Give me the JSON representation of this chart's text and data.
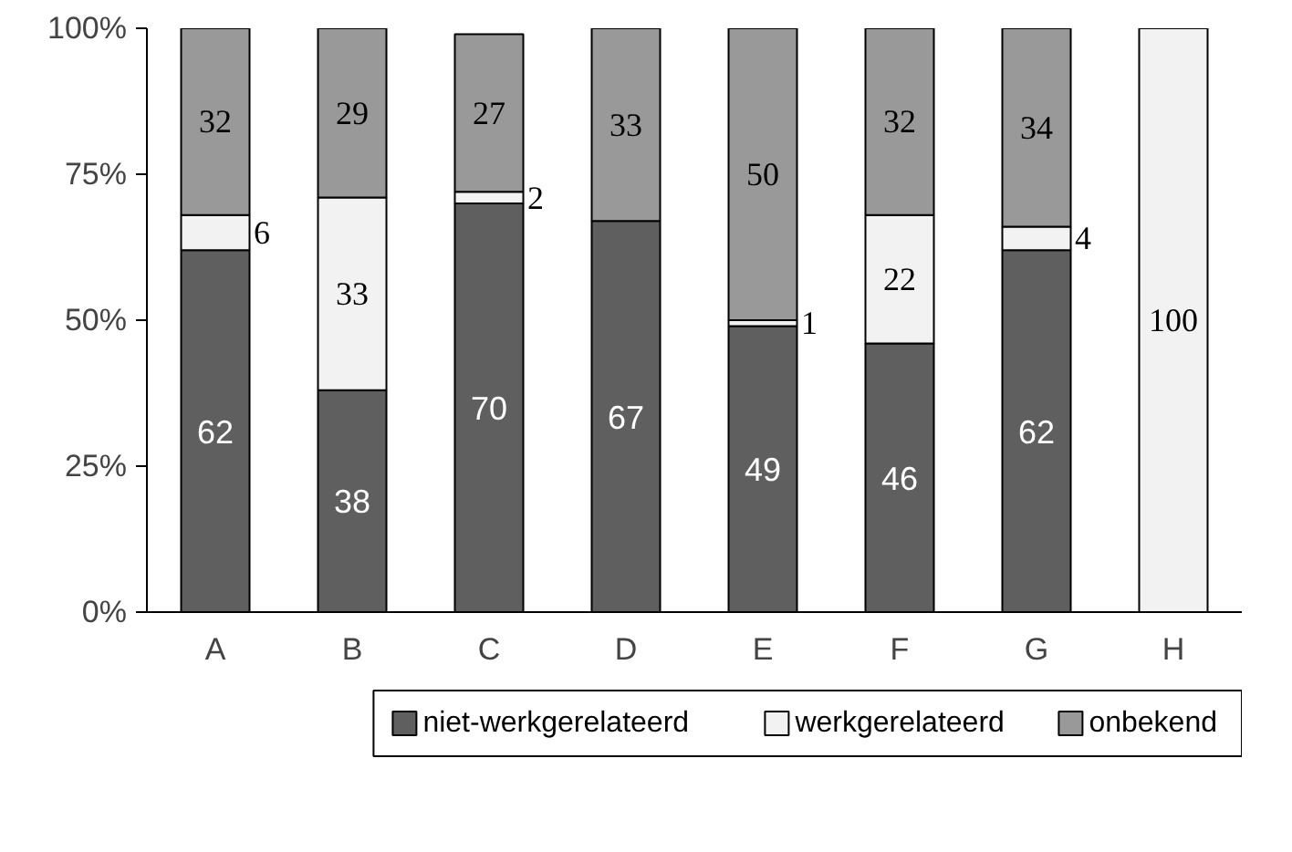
{
  "chart_data": {
    "type": "bar",
    "stacked": true,
    "categories": [
      "A",
      "B",
      "C",
      "D",
      "E",
      "F",
      "G",
      "H"
    ],
    "series": [
      {
        "name": "niet-werkgerelateerd",
        "color": "#5f5f5f",
        "values": [
          62,
          38,
          70,
          67,
          49,
          46,
          62,
          null
        ]
      },
      {
        "name": "werkgerelateerd",
        "color": "#f2f2f2",
        "values": [
          6,
          33,
          2,
          null,
          1,
          22,
          4,
          100
        ]
      },
      {
        "name": "onbekend",
        "color": "#999999",
        "values": [
          32,
          29,
          27,
          33,
          50,
          32,
          34,
          null
        ]
      }
    ],
    "ylim": [
      0,
      100
    ],
    "yticks": [
      {
        "value": 0,
        "label": "0%"
      },
      {
        "value": 25,
        "label": "25%"
      },
      {
        "value": 50,
        "label": "50%"
      },
      {
        "value": 75,
        "label": "75%"
      },
      {
        "value": 100,
        "label": "100%"
      }
    ],
    "data_labels": true,
    "grid": false,
    "legend": "bottom"
  }
}
